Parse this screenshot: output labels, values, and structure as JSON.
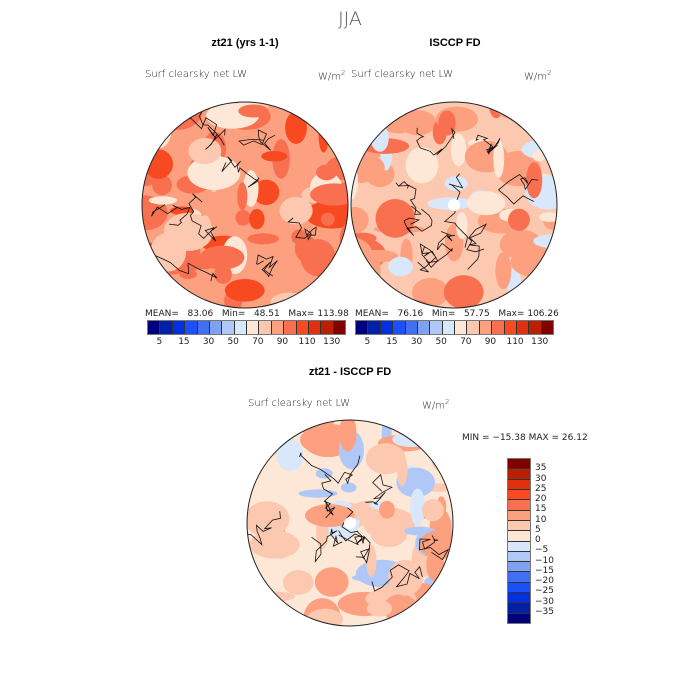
{
  "title": "JJA",
  "panels": [
    {
      "title": "zt21 (yrs 1-1)",
      "subtitle": "Surf clearsky net LW",
      "units": "W/m",
      "units_sup": "2",
      "stats": {
        "mean_label": "MEAN=",
        "mean": "83.06",
        "min_label": "Min=",
        "min": "48.51",
        "max_label": "Max=",
        "max": "113.98"
      }
    },
    {
      "title": "ISCCP FD",
      "subtitle": "Surf clearsky net LW",
      "units": "W/m",
      "units_sup": "2",
      "stats": {
        "mean_label": "MEAN=",
        "mean": "76.16",
        "min_label": "Min=",
        "min": "57.75",
        "max_label": "Max=",
        "max": "106.26"
      }
    }
  ],
  "colorbar": {
    "colors": [
      "#00007f",
      "#0020a8",
      "#0030e0",
      "#1a50f8",
      "#4070f0",
      "#80a0f0",
      "#b0c8f8",
      "#d8e8fa",
      "#fde8d8",
      "#fcc8b0",
      "#fca080",
      "#f87050",
      "#f84a20",
      "#e03010",
      "#b82000",
      "#800000"
    ],
    "labels": [
      "5",
      "15",
      "30",
      "50",
      "70",
      "90",
      "110",
      "130"
    ]
  },
  "diff": {
    "title": "zt21 - ISCCP FD",
    "subtitle": "Surf clearsky net LW",
    "units": "W/m",
    "units_sup": "2",
    "minmax": "MIN = −15.38 MAX =  26.12",
    "labels": [
      "35",
      "30",
      "25",
      "20",
      "15",
      "10",
      "5",
      "0",
      "−5",
      "−10",
      "−15",
      "−20",
      "−25",
      "−30",
      "−35"
    ]
  }
}
